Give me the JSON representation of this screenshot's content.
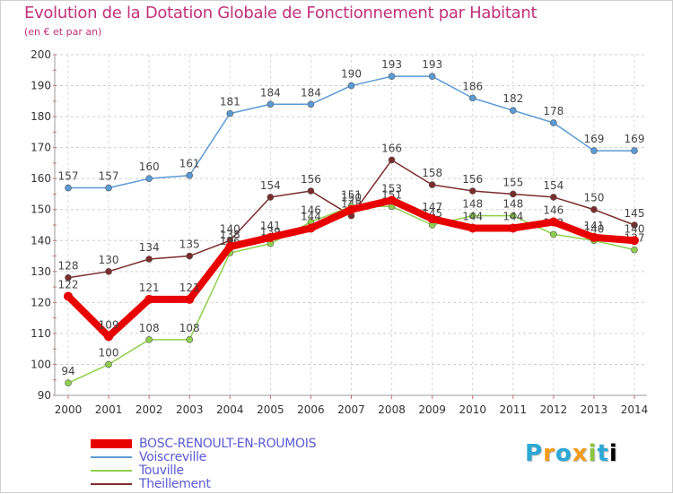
{
  "chart_data": {
    "type": "line",
    "title": "Evolution de la Dotation Globale de Fonctionnement par Habitant",
    "subtitle": "(en € et par an)",
    "xlabel": "",
    "ylabel": "",
    "ylim": [
      90,
      200
    ],
    "yticks": [
      90,
      100,
      110,
      120,
      130,
      140,
      150,
      160,
      170,
      180,
      190,
      200
    ],
    "grid": "y-dashed",
    "legend_position": "bottom-left",
    "categories": [
      "2000",
      "2001",
      "2002",
      "2003",
      "2004",
      "2005",
      "2006",
      "2007",
      "2008",
      "2009",
      "2010",
      "2011",
      "2012",
      "2013",
      "2014"
    ],
    "series": [
      {
        "name": "Voiscreville",
        "color": "#5b9bd5",
        "values": [
          157,
          157,
          160,
          161,
          181,
          184,
          184,
          190,
          193,
          193,
          186,
          182,
          178,
          169,
          169
        ]
      },
      {
        "name": "Theillement",
        "color": "#7b2c2c",
        "values": [
          128,
          130,
          134,
          135,
          140,
          154,
          156,
          148,
          166,
          158,
          156,
          155,
          154,
          150,
          145
        ]
      },
      {
        "name": "Touville",
        "color": "#8ed04c",
        "values": [
          94,
          100,
          108,
          108,
          136,
          139,
          146,
          151,
          151,
          145,
          148,
          148,
          142,
          140,
          137
        ]
      },
      {
        "name": "BOSC-RENOULT-EN-ROUMOIS",
        "color": "#e80000",
        "values": [
          122,
          109,
          121,
          121,
          138,
          141,
          144,
          150,
          153,
          147,
          144,
          144,
          146,
          141,
          140
        ]
      }
    ]
  },
  "legend": [
    {
      "label": "BOSC-RENOULT-EN-ROUMOIS",
      "color": "#e80000",
      "text_color": "#5a5ad6"
    },
    {
      "label": "Voiscreville",
      "color": "#5b9bd5",
      "text_color": "#5a5ad6"
    },
    {
      "label": "Touville",
      "color": "#8ed04c",
      "text_color": "#5a5ad6"
    },
    {
      "label": "Theillement",
      "color": "#7b2c2c",
      "text_color": "#5a5ad6"
    }
  ],
  "logo": {
    "letters": [
      "P",
      "r",
      "o",
      "x",
      "i",
      "t",
      "i"
    ]
  }
}
